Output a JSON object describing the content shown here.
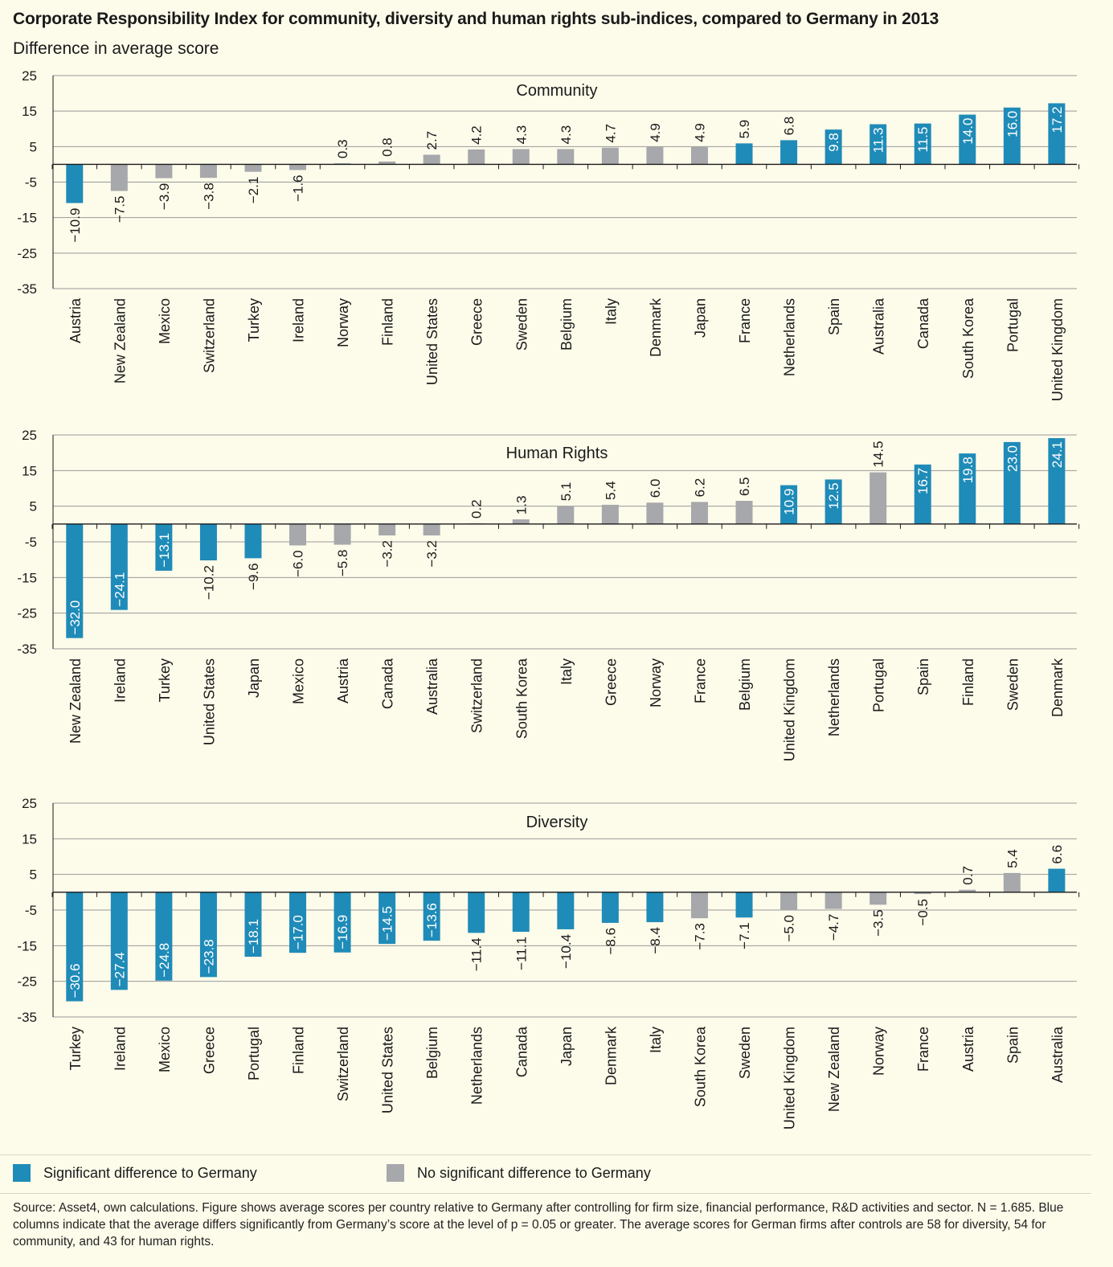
{
  "title": "Corporate Responsibility Index for community, diversity and human rights sub-indices, compared to Germany in 2013",
  "subtitle": "Difference in average score",
  "colors": {
    "significant": "#1f8bb8",
    "not_significant": "#a6a8ab"
  },
  "legend": {
    "significant": "Significant difference to Germany",
    "not_significant": "No significant difference to Germany"
  },
  "source": "Source: Asset4, own calculations. Figure shows average scores per country relative to Germany after controlling for firm size, financial performance, R&D activities and sector. N = 1.685. Blue columns indicate that the average differs significantly from Germany’s score at the level of p = 0.05 or greater. The average scores for German firms after controls are 58 for diversity, 54 for community, and 43 for human rights.",
  "chart_data": [
    {
      "type": "bar",
      "title": "Community",
      "ylim": [
        -35,
        25
      ],
      "yticks": [
        25,
        15,
        5,
        -5,
        -15,
        -25,
        -35
      ],
      "categories": [
        "Austria",
        "New Zealand",
        "Mexico",
        "Switzerland",
        "Turkey",
        "Ireland",
        "Norway",
        "Finland",
        "United States",
        "Greece",
        "Sweden",
        "Belgium",
        "Italy",
        "Denmark",
        "Japan",
        "France",
        "Netherlands",
        "Spain",
        "Australia",
        "Canada",
        "South Korea",
        "Portugal",
        "United Kingdom"
      ],
      "values": [
        -10.9,
        -7.5,
        -3.9,
        -3.8,
        -2.1,
        -1.6,
        0.3,
        0.8,
        2.7,
        4.2,
        4.3,
        4.3,
        4.7,
        4.9,
        4.9,
        5.9,
        6.8,
        9.8,
        11.3,
        11.5,
        14.0,
        16.0,
        17.2
      ],
      "significant": [
        true,
        false,
        false,
        false,
        false,
        false,
        false,
        false,
        false,
        false,
        false,
        false,
        false,
        false,
        false,
        true,
        true,
        true,
        true,
        true,
        true,
        true,
        true
      ]
    },
    {
      "type": "bar",
      "title": "Human Rights",
      "ylim": [
        -35,
        25
      ],
      "yticks": [
        25,
        15,
        5,
        -5,
        -15,
        -25,
        -35
      ],
      "categories": [
        "New Zealand",
        "Ireland",
        "Turkey",
        "United States",
        "Japan",
        "Mexico",
        "Austria",
        "Canada",
        "Australia",
        "Switzerland",
        "South Korea",
        "Italy",
        "Greece",
        "Norway",
        "France",
        "Belgium",
        "United Kingdom",
        "Netherlands",
        "Portugal",
        "Spain",
        "Finland",
        "Sweden",
        "Denmark"
      ],
      "values": [
        -32.0,
        -24.1,
        -13.1,
        -10.2,
        -9.6,
        -6.0,
        -5.8,
        -3.2,
        -3.2,
        0.2,
        1.3,
        5.1,
        5.4,
        6.0,
        6.2,
        6.5,
        10.9,
        12.5,
        14.5,
        16.7,
        19.8,
        23.0,
        24.1
      ],
      "significant": [
        true,
        true,
        true,
        true,
        true,
        false,
        false,
        false,
        false,
        false,
        false,
        false,
        false,
        false,
        false,
        false,
        true,
        true,
        false,
        true,
        true,
        true,
        true
      ]
    },
    {
      "type": "bar",
      "title": "Diversity",
      "ylim": [
        -35,
        25
      ],
      "yticks": [
        25,
        15,
        5,
        -5,
        -15,
        -25,
        -35
      ],
      "categories": [
        "Turkey",
        "Ireland",
        "Mexico",
        "Greece",
        "Portugal",
        "Finland",
        "Switzerland",
        "United States",
        "Belgium",
        "Netherlands",
        "Canada",
        "Japan",
        "Denmark",
        "Italy",
        "South Korea",
        "Sweden",
        "United Kingdom",
        "New Zealand",
        "Norway",
        "France",
        "Austria",
        "Spain",
        "Australia"
      ],
      "values": [
        -30.6,
        -27.4,
        -24.8,
        -23.8,
        -18.1,
        -17.0,
        -16.9,
        -14.5,
        -13.6,
        -11.4,
        -11.1,
        -10.4,
        -8.6,
        -8.4,
        -7.3,
        -7.1,
        -5.0,
        -4.7,
        -3.5,
        -0.5,
        0.7,
        5.4,
        6.6
      ],
      "significant": [
        true,
        true,
        true,
        true,
        true,
        true,
        true,
        true,
        true,
        true,
        true,
        true,
        true,
        true,
        false,
        true,
        false,
        false,
        false,
        false,
        false,
        false,
        true
      ]
    }
  ]
}
